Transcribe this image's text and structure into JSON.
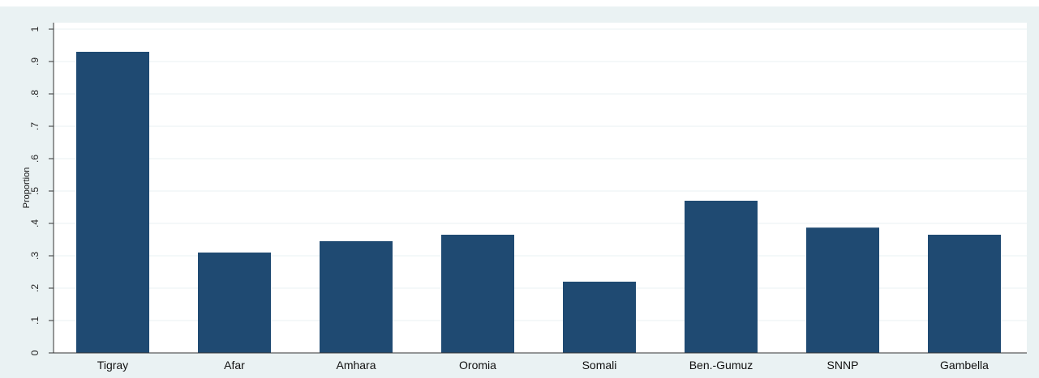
{
  "chart_data": {
    "type": "bar",
    "categories": [
      "Tigray",
      "Afar",
      "Amhara",
      "Oromia",
      "Somali",
      "Ben.-Gumuz",
      "SNNP",
      "Gambella"
    ],
    "values": [
      0.93,
      0.31,
      0.345,
      0.365,
      0.22,
      0.47,
      0.387,
      0.365
    ],
    "title": "",
    "xlabel": "",
    "ylabel": "Proportion",
    "ylim": [
      0,
      1
    ],
    "yticks": [
      0,
      0.1,
      0.2,
      0.3,
      0.4,
      0.5,
      0.6,
      0.7,
      0.8,
      0.9,
      1
    ],
    "ytick_labels": [
      "0",
      ".1",
      ".2",
      ".3",
      ".4",
      ".5",
      ".6",
      ".7",
      ".8",
      ".9",
      "1"
    ],
    "grid": true,
    "legend": "none",
    "bar_color": "#1f4a72",
    "background_color": "#ffffff",
    "outer_background_color": "#eaf2f3",
    "grid_color": "#eaf2f3"
  }
}
